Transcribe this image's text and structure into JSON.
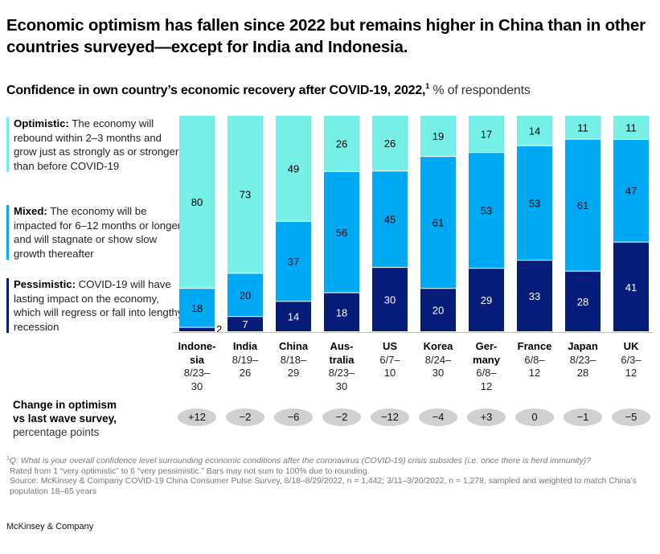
{
  "title": "Economic optimism has fallen since 2022 but remains higher in China than in other countries surveyed—except for India and Indonesia.",
  "subtitle": {
    "bold": "Confidence in own country’s economic recovery after COVID-19, 2022,",
    "footnote_marker": "1",
    "unit": "% of respondents"
  },
  "legend": [
    {
      "key": "optimistic",
      "label": "Optimistic:",
      "text": "The economy will rebound within 2–3 months and grow just as strongly as or stronger than before COVID-19",
      "color": "#76F0E6"
    },
    {
      "key": "mixed",
      "label": "Mixed:",
      "text": "The economy will be impacted for 6–12 months or longer and will stagnate or show slow growth thereafter",
      "color": "#00A9F4"
    },
    {
      "key": "pessimistic",
      "label": "Pessimistic:",
      "text": "COVID-19 will have lasting impact on the economy, which will regress or fall into lengthy recession",
      "color": "#051C7A"
    }
  ],
  "change": {
    "label_bold_1": "Change in optimism",
    "label_bold_2": "vs last wave survey,",
    "label_unit": "percentage points",
    "values": [
      "+12",
      "−2",
      "−6",
      "−2",
      "−12",
      "−4",
      "+3",
      "0",
      "−1",
      "−5"
    ]
  },
  "footnote": {
    "marker": "1",
    "question": "Q: What is your overall confidence level surrounding economic conditions after the coronavirus (COVID-19) crisis subsides (i.e. once there is herd immunity)?",
    "rating": "Rated from 1 “very optimistic” to 6 “very pessimistic.” Bars may not sum to 100% due to rounding.",
    "source": "Source: McKinsey & Company COVID-19 China Consumer Pulse Survey, 8/18–8/29/2022, n = 1,442; 3/11–3/20/2022, n = 1,278, sampled and weighted to match China’s population 18–65 years"
  },
  "brand": "McKinsey & Company",
  "chart_data": {
    "type": "bar",
    "stacked": true,
    "orientation": "vertical",
    "title": "Confidence in own country’s economic recovery after COVID-19, 2022",
    "ylabel": "% of respondents",
    "ylim": [
      0,
      100
    ],
    "grid": false,
    "legend_position": "left",
    "categories": [
      {
        "name": "Indonesia",
        "name_lines": [
          "Indone-",
          "sia"
        ],
        "dates": [
          "8/23–",
          "30"
        ]
      },
      {
        "name": "India",
        "name_lines": [
          "India"
        ],
        "dates": [
          "8/19–",
          "26"
        ]
      },
      {
        "name": "China",
        "name_lines": [
          "China"
        ],
        "dates": [
          "8/18–",
          "29"
        ]
      },
      {
        "name": "Australia",
        "name_lines": [
          "Aus-",
          "tralia"
        ],
        "dates": [
          "8/23–",
          "30"
        ]
      },
      {
        "name": "US",
        "name_lines": [
          "US"
        ],
        "dates": [
          "6/7–",
          "10"
        ]
      },
      {
        "name": "Korea",
        "name_lines": [
          "Korea"
        ],
        "dates": [
          "8/24–",
          "30"
        ]
      },
      {
        "name": "Germany",
        "name_lines": [
          "Ger-",
          "many"
        ],
        "dates": [
          "6/8–",
          "12"
        ]
      },
      {
        "name": "France",
        "name_lines": [
          "France"
        ],
        "dates": [
          "6/8–",
          "12"
        ]
      },
      {
        "name": "Japan",
        "name_lines": [
          "Japan"
        ],
        "dates": [
          "8/23–",
          "28"
        ]
      },
      {
        "name": "UK",
        "name_lines": [
          "UK"
        ],
        "dates": [
          "6/3–",
          "12"
        ]
      }
    ],
    "series": [
      {
        "name": "Pessimistic",
        "color": "#051C7A",
        "label_color": "#ffffff",
        "values": [
          2,
          7,
          14,
          18,
          30,
          20,
          29,
          33,
          28,
          41
        ]
      },
      {
        "name": "Mixed",
        "color": "#00A9F4",
        "label_color": "#000000",
        "values": [
          18,
          20,
          37,
          56,
          45,
          61,
          53,
          53,
          61,
          47
        ]
      },
      {
        "name": "Optimistic",
        "color": "#76F0E6",
        "label_color": "#000000",
        "values": [
          80,
          73,
          49,
          26,
          26,
          19,
          17,
          14,
          11,
          11
        ]
      }
    ]
  }
}
